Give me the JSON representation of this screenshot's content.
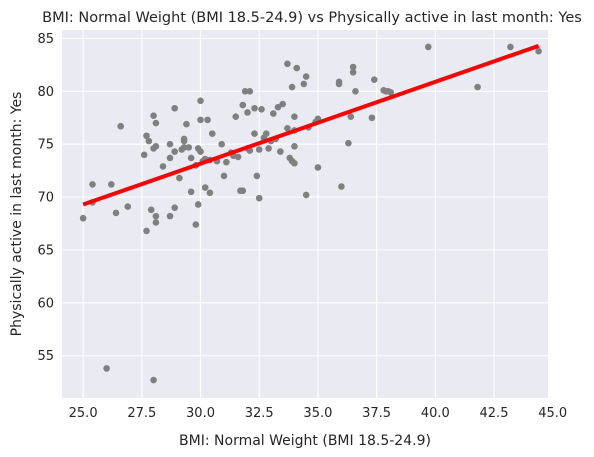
{
  "chart_data": {
    "type": "scatter",
    "title": "BMI: Normal Weight (BMI 18.5-24.9) vs Physically active in last month: Yes",
    "xlabel": "BMI: Normal Weight (BMI 18.5-24.9)",
    "ylabel": "Physically active in last month: Yes",
    "xlim": [
      24.1,
      44.8
    ],
    "ylim": [
      51.0,
      85.8
    ],
    "xticks": [
      "25.0",
      "27.5",
      "30.0",
      "32.5",
      "35.0",
      "37.5",
      "40.0",
      "42.5",
      "45.0"
    ],
    "yticks": [
      "55",
      "60",
      "65",
      "70",
      "75",
      "80",
      "85"
    ],
    "grid": true,
    "background": "#eaeaf2",
    "point_color": "#808080",
    "line_color": "#ff0000",
    "fit_line": {
      "x": [
        25.0,
        44.4
      ],
      "y": [
        69.3,
        84.3
      ]
    },
    "points": [
      [
        25.0,
        68.0
      ],
      [
        25.4,
        71.2
      ],
      [
        25.4,
        69.5
      ],
      [
        26.0,
        53.8
      ],
      [
        26.2,
        71.2
      ],
      [
        26.4,
        68.5
      ],
      [
        26.6,
        76.7
      ],
      [
        26.9,
        69.1
      ],
      [
        27.6,
        74.0
      ],
      [
        27.7,
        75.8
      ],
      [
        27.8,
        75.3
      ],
      [
        27.7,
        66.8
      ],
      [
        27.9,
        68.8
      ],
      [
        28.0,
        77.7
      ],
      [
        28.0,
        74.6
      ],
      [
        28.1,
        74.8
      ],
      [
        28.1,
        77.0
      ],
      [
        28.0,
        52.7
      ],
      [
        28.1,
        68.2
      ],
      [
        28.1,
        67.6
      ],
      [
        28.4,
        72.9
      ],
      [
        28.7,
        75.0
      ],
      [
        28.7,
        73.7
      ],
      [
        28.7,
        68.2
      ],
      [
        28.9,
        78.4
      ],
      [
        28.9,
        74.3
      ],
      [
        28.9,
        69.0
      ],
      [
        29.1,
        71.8
      ],
      [
        29.2,
        74.5
      ],
      [
        29.3,
        75.5
      ],
      [
        29.3,
        75.3
      ],
      [
        29.3,
        74.7
      ],
      [
        29.4,
        76.9
      ],
      [
        29.5,
        74.7
      ],
      [
        29.6,
        73.7
      ],
      [
        29.6,
        70.5
      ],
      [
        29.8,
        73.0
      ],
      [
        29.8,
        67.4
      ],
      [
        29.9,
        69.3
      ],
      [
        29.9,
        74.6
      ],
      [
        30.0,
        79.1
      ],
      [
        30.0,
        77.3
      ],
      [
        30.0,
        74.3
      ],
      [
        30.1,
        73.4
      ],
      [
        30.2,
        73.6
      ],
      [
        30.2,
        70.9
      ],
      [
        30.3,
        77.3
      ],
      [
        30.4,
        73.5
      ],
      [
        30.4,
        70.4
      ],
      [
        30.5,
        76.0
      ],
      [
        30.7,
        73.4
      ],
      [
        30.9,
        75.0
      ],
      [
        31.0,
        72.0
      ],
      [
        31.1,
        73.3
      ],
      [
        31.3,
        74.2
      ],
      [
        31.4,
        73.9
      ],
      [
        31.5,
        77.6
      ],
      [
        31.6,
        73.8
      ],
      [
        31.7,
        70.6
      ],
      [
        31.8,
        78.7
      ],
      [
        31.8,
        70.6
      ],
      [
        31.9,
        80.0
      ],
      [
        32.0,
        78.0
      ],
      [
        32.0,
        74.6
      ],
      [
        32.1,
        80.0
      ],
      [
        32.1,
        74.4
      ],
      [
        32.3,
        78.4
      ],
      [
        32.3,
        76.0
      ],
      [
        32.4,
        72.0
      ],
      [
        32.5,
        69.9
      ],
      [
        32.5,
        74.5
      ],
      [
        32.6,
        78.3
      ],
      [
        32.7,
        75.6
      ],
      [
        32.8,
        76.0
      ],
      [
        32.9,
        74.6
      ],
      [
        33.0,
        75.3
      ],
      [
        33.1,
        77.9
      ],
      [
        33.2,
        75.5
      ],
      [
        33.3,
        78.5
      ],
      [
        33.4,
        74.3
      ],
      [
        33.5,
        78.8
      ],
      [
        33.7,
        82.6
      ],
      [
        33.7,
        76.5
      ],
      [
        33.8,
        73.7
      ],
      [
        33.9,
        80.4
      ],
      [
        33.9,
        73.4
      ],
      [
        34.0,
        77.6
      ],
      [
        34.0,
        76.3
      ],
      [
        34.0,
        74.8
      ],
      [
        34.0,
        73.2
      ],
      [
        34.1,
        82.2
      ],
      [
        34.4,
        80.7
      ],
      [
        34.5,
        81.4
      ],
      [
        34.5,
        70.2
      ],
      [
        34.6,
        76.6
      ],
      [
        34.9,
        77.1
      ],
      [
        35.0,
        77.4
      ],
      [
        35.0,
        72.8
      ],
      [
        35.9,
        80.9
      ],
      [
        35.9,
        80.7
      ],
      [
        36.0,
        71.0
      ],
      [
        36.3,
        75.1
      ],
      [
        36.4,
        77.6
      ],
      [
        36.5,
        82.3
      ],
      [
        36.5,
        81.8
      ],
      [
        36.6,
        80.0
      ],
      [
        37.3,
        77.5
      ],
      [
        37.4,
        81.1
      ],
      [
        37.8,
        80.1
      ],
      [
        37.9,
        80.0
      ],
      [
        38.0,
        80.0
      ],
      [
        38.1,
        79.9
      ],
      [
        39.7,
        84.2
      ],
      [
        41.8,
        80.4
      ],
      [
        43.2,
        84.2
      ],
      [
        44.4,
        83.8
      ]
    ]
  }
}
